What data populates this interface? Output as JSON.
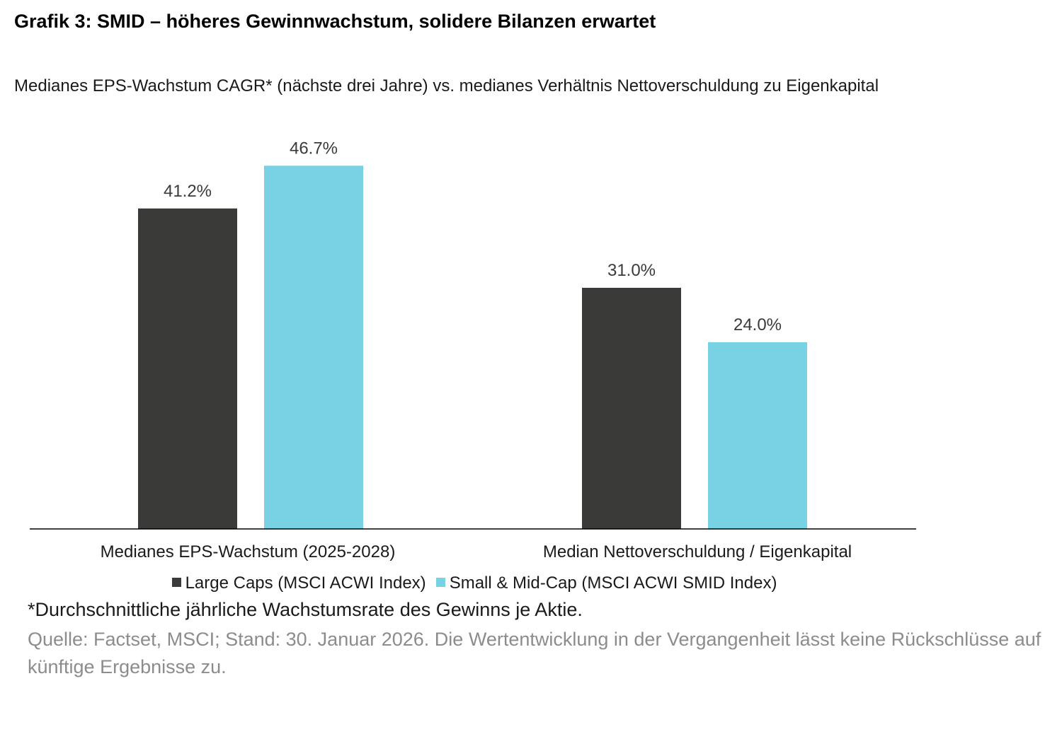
{
  "title": "Grafik 3: SMID – höheres Gewinnwachstum, solidere Bilanzen erwartet",
  "subtitle": "Medianes EPS-Wachstum CAGR* (nächste drei Jahre) vs. medianes Verhältnis Nettoverschuldung zu Eigenkapital",
  "chart_data": {
    "type": "bar",
    "title": "Medianes EPS-Wachstum CAGR* (nächste drei Jahre) vs. medianes Verhältnis Nettoverschuldung zu Eigenkapital",
    "categories": [
      "Medianes EPS-Wachstum (2025-2028)",
      "Median Nettoverschuldung / Eigenkapital"
    ],
    "series": [
      {
        "name": "Large Caps (MSCI ACWI Index)",
        "values": [
          41.2,
          31.0
        ],
        "labels": [
          "41.2%",
          "31.0%"
        ],
        "color": "#3a3b39"
      },
      {
        "name": "Small & Mid-Cap (MSCI ACWI SMID Index)",
        "values": [
          46.7,
          24.0
        ],
        "labels": [
          "46.7%",
          "24.0%"
        ],
        "color": "#79d1e4"
      }
    ],
    "ylim": [
      0,
      50
    ],
    "xlabel": "",
    "ylabel": "",
    "grid": false,
    "legend": "bottom"
  },
  "footnote": "*Durchschnittliche jährliche Wachstumsrate des Gewinns je Aktie.",
  "source": "Quelle: Factset, MSCI; Stand: 30. Januar 2026. Die Wertentwicklung in der Vergangenheit lässt keine Rückschlüsse auf künftige Ergebnisse zu."
}
